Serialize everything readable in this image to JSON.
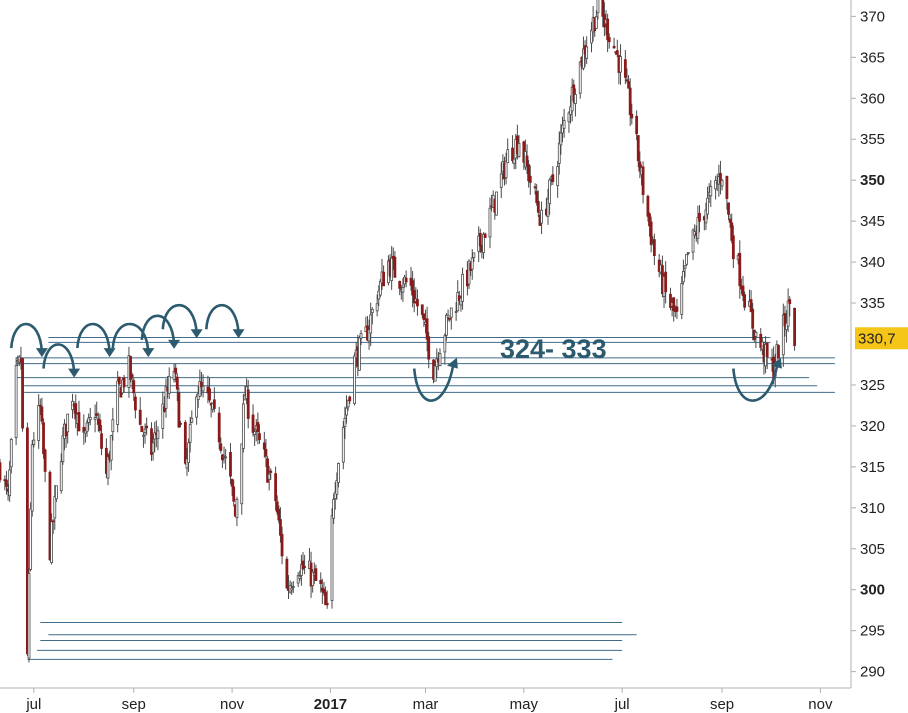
{
  "chart_data": {
    "type": "candlestick",
    "title": "",
    "xlabel": "",
    "ylabel": "",
    "ylim": [
      288,
      372
    ],
    "y_ticks": [
      {
        "value": 370,
        "label": "370",
        "bold": false
      },
      {
        "value": 365,
        "label": "365",
        "bold": false
      },
      {
        "value": 360,
        "label": "360",
        "bold": false
      },
      {
        "value": 355,
        "label": "355",
        "bold": false
      },
      {
        "value": 350,
        "label": "350",
        "bold": true
      },
      {
        "value": 345,
        "label": "345",
        "bold": false
      },
      {
        "value": 340,
        "label": "340",
        "bold": false
      },
      {
        "value": 335,
        "label": "335",
        "bold": false
      },
      {
        "value": 325,
        "label": "325",
        "bold": false
      },
      {
        "value": 320,
        "label": "320",
        "bold": false
      },
      {
        "value": 315,
        "label": "315",
        "bold": false
      },
      {
        "value": 310,
        "label": "310",
        "bold": false
      },
      {
        "value": 305,
        "label": "305",
        "bold": false
      },
      {
        "value": 300,
        "label": "300",
        "bold": true
      },
      {
        "value": 295,
        "label": "295",
        "bold": false
      },
      {
        "value": 290,
        "label": "290",
        "bold": false
      }
    ],
    "x_ticks": [
      {
        "date": "2016-07-01",
        "label": "jul",
        "bold": false
      },
      {
        "date": "2016-09-01",
        "label": "sep",
        "bold": false
      },
      {
        "date": "2016-11-01",
        "label": "nov",
        "bold": false
      },
      {
        "date": "2017-01-01",
        "label": "2017",
        "bold": true
      },
      {
        "date": "2017-03-01",
        "label": "mar",
        "bold": false
      },
      {
        "date": "2017-05-01",
        "label": "may",
        "bold": false
      },
      {
        "date": "2017-07-01",
        "label": "jul",
        "bold": false
      },
      {
        "date": "2017-09-01",
        "label": "sep",
        "bold": false
      },
      {
        "date": "2017-11-01",
        "label": "nov",
        "bold": false
      }
    ],
    "x_range": [
      "2016-06-10",
      "2017-11-20"
    ],
    "last_price": {
      "value": 330.7,
      "label": "330,7"
    },
    "support_zone": {
      "low": 324,
      "high": 333,
      "label": "324- 333"
    },
    "price_path": [
      [
        "2016-06-10",
        315
      ],
      [
        "2016-06-15",
        311
      ],
      [
        "2016-06-20",
        326
      ],
      [
        "2016-06-23",
        328
      ],
      [
        "2016-06-27",
        292
      ],
      [
        "2016-06-30",
        318
      ],
      [
        "2016-07-05",
        322
      ],
      [
        "2016-07-11",
        305
      ],
      [
        "2016-07-18",
        317
      ],
      [
        "2016-07-25",
        324
      ],
      [
        "2016-08-01",
        318
      ],
      [
        "2016-08-08",
        322
      ],
      [
        "2016-08-15",
        314
      ],
      [
        "2016-08-22",
        324
      ],
      [
        "2016-08-29",
        327
      ],
      [
        "2016-09-05",
        320
      ],
      [
        "2016-09-12",
        317
      ],
      [
        "2016-09-19",
        322
      ],
      [
        "2016-09-26",
        327
      ],
      [
        "2016-10-03",
        314
      ],
      [
        "2016-10-10",
        325
      ],
      [
        "2016-10-17",
        323
      ],
      [
        "2016-10-24",
        319
      ],
      [
        "2016-10-31",
        313
      ],
      [
        "2016-11-03",
        309
      ],
      [
        "2016-11-09",
        324
      ],
      [
        "2016-11-14",
        320
      ],
      [
        "2016-11-21",
        316
      ],
      [
        "2016-11-28",
        311
      ],
      [
        "2016-12-05",
        300
      ],
      [
        "2016-12-12",
        303
      ],
      [
        "2016-12-19",
        302
      ],
      [
        "2016-12-26",
        300
      ],
      [
        "2016-12-30",
        297
      ],
      [
        "2017-01-03",
        312
      ],
      [
        "2017-01-09",
        320
      ],
      [
        "2017-01-16",
        328
      ],
      [
        "2017-01-23",
        331
      ],
      [
        "2017-01-30",
        336
      ],
      [
        "2017-02-06",
        340
      ],
      [
        "2017-02-13",
        338
      ],
      [
        "2017-02-20",
        337
      ],
      [
        "2017-02-27",
        333
      ],
      [
        "2017-03-06",
        327
      ],
      [
        "2017-03-10",
        330
      ],
      [
        "2017-03-17",
        334
      ],
      [
        "2017-03-24",
        337
      ],
      [
        "2017-03-31",
        340
      ],
      [
        "2017-04-07",
        344
      ],
      [
        "2017-04-14",
        348
      ],
      [
        "2017-04-21",
        353
      ],
      [
        "2017-04-28",
        355
      ],
      [
        "2017-05-05",
        350
      ],
      [
        "2017-05-12",
        345
      ],
      [
        "2017-05-19",
        350
      ],
      [
        "2017-05-26",
        357
      ],
      [
        "2017-06-02",
        362
      ],
      [
        "2017-06-09",
        367
      ],
      [
        "2017-06-16",
        371
      ],
      [
        "2017-06-23",
        368
      ],
      [
        "2017-06-30",
        364
      ],
      [
        "2017-07-07",
        358
      ],
      [
        "2017-07-14",
        349
      ],
      [
        "2017-07-21",
        341
      ],
      [
        "2017-07-28",
        336
      ],
      [
        "2017-08-04",
        333
      ],
      [
        "2017-08-11",
        341
      ],
      [
        "2017-08-18",
        345
      ],
      [
        "2017-08-25",
        348
      ],
      [
        "2017-09-01",
        351
      ],
      [
        "2017-09-08",
        342
      ],
      [
        "2017-09-15",
        336
      ],
      [
        "2017-09-22",
        331
      ],
      [
        "2017-09-29",
        328
      ],
      [
        "2017-10-03",
        327
      ],
      [
        "2017-10-09",
        332
      ],
      [
        "2017-10-13",
        335
      ],
      [
        "2017-10-16",
        330.7
      ]
    ],
    "horizontal_lines": [
      {
        "y": 330.8,
        "x_start": "2016-07-10",
        "x_end": "2017-10-01"
      },
      {
        "y": 330.2,
        "x_start": "2016-07-10",
        "x_end": "2017-10-01"
      },
      {
        "y": 328.3,
        "x_start": "2016-06-20",
        "x_end": "2017-11-10"
      },
      {
        "y": 327.6,
        "x_start": "2016-06-20",
        "x_end": "2017-11-10"
      },
      {
        "y": 325.9,
        "x_start": "2016-06-20",
        "x_end": "2017-10-25"
      },
      {
        "y": 324.9,
        "x_start": "2016-06-25",
        "x_end": "2017-10-30"
      },
      {
        "y": 324.1,
        "x_start": "2016-06-25",
        "x_end": "2017-11-10"
      },
      {
        "y": 296.0,
        "x_start": "2016-07-05",
        "x_end": "2017-07-01"
      },
      {
        "y": 294.5,
        "x_start": "2016-07-10",
        "x_end": "2017-07-10"
      },
      {
        "y": 293.8,
        "x_start": "2016-07-05",
        "x_end": "2017-07-01"
      },
      {
        "y": 292.6,
        "x_start": "2016-07-03",
        "x_end": "2017-07-01"
      },
      {
        "y": 291.5,
        "x_start": "2016-06-27",
        "x_end": "2017-06-25"
      }
    ],
    "arcs": [
      {
        "kind": "over",
        "x_start": "2016-06-17",
        "x_end": "2016-07-06",
        "y": 329.5,
        "h": 2.5
      },
      {
        "kind": "over",
        "x_start": "2016-07-07",
        "x_end": "2016-07-26",
        "y": 327.0,
        "h": 2.5
      },
      {
        "kind": "over",
        "x_start": "2016-07-28",
        "x_end": "2016-08-17",
        "y": 329.5,
        "h": 2.5
      },
      {
        "kind": "over",
        "x_start": "2016-08-19",
        "x_end": "2016-09-10",
        "y": 329.5,
        "h": 2.5
      },
      {
        "kind": "over",
        "x_start": "2016-09-06",
        "x_end": "2016-09-26",
        "y": 330.5,
        "h": 2.5
      },
      {
        "kind": "over",
        "x_start": "2016-09-19",
        "x_end": "2016-10-10",
        "y": 331.8,
        "h": 2.5
      },
      {
        "kind": "over",
        "x_start": "2016-10-16",
        "x_end": "2016-11-05",
        "y": 331.8,
        "h": 2.5
      },
      {
        "kind": "under",
        "x_start": "2017-02-22",
        "x_end": "2017-03-18",
        "y": 327.0,
        "h": 2.5
      },
      {
        "kind": "under",
        "x_start": "2017-09-08",
        "x_end": "2017-10-05",
        "y": 327.0,
        "h": 2.5
      }
    ],
    "colors": {
      "candles": "#4a4a4a",
      "candle_accent": "#8b1a1a",
      "lines": "#3f6d8a",
      "arrows": "#2c5a6e",
      "zone_label": "#2c5a6e",
      "price_tag_bg": "#f5c518",
      "axis": "#b0b0b0"
    }
  }
}
